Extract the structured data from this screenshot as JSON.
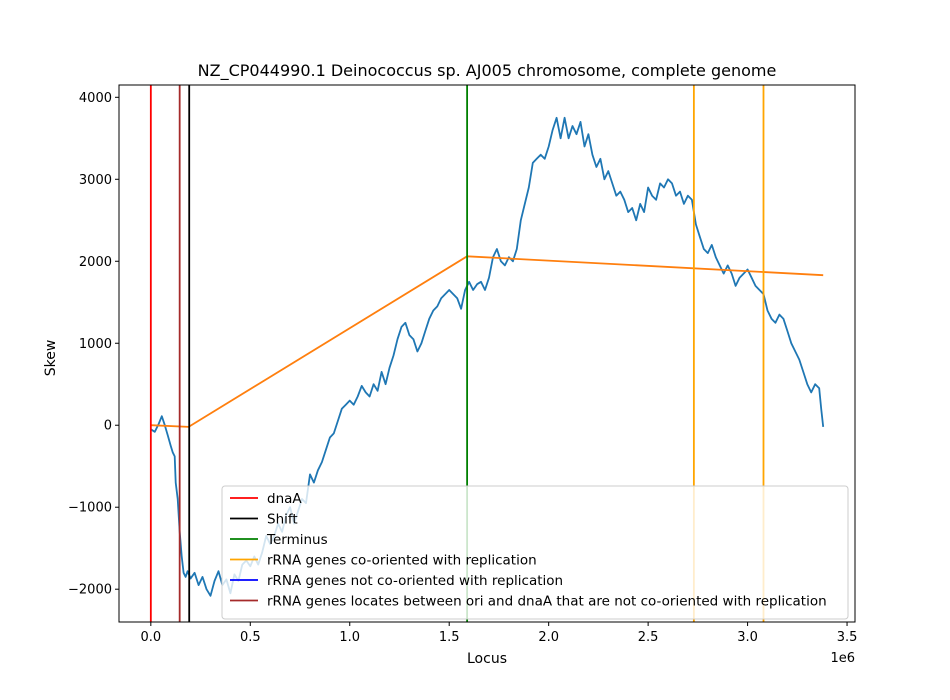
{
  "chart_data": {
    "type": "line",
    "title": "NZ_CP044990.1 Deinococcus sp. AJ005 chromosome, complete genome",
    "xlabel": "Locus",
    "ylabel": "Skew",
    "x_offset_label": "1e6",
    "xlim": [
      -160000,
      3540000
    ],
    "ylim": [
      -2400,
      4150
    ],
    "x_ticks": [
      0,
      500000,
      1000000,
      1500000,
      2000000,
      2500000,
      3000000,
      3500000
    ],
    "x_tick_labels": [
      "0.0",
      "0.5",
      "1.0",
      "1.5",
      "2.0",
      "2.5",
      "3.0",
      "3.5"
    ],
    "y_ticks": [
      -2000,
      -1000,
      0,
      1000,
      2000,
      3000,
      4000
    ],
    "y_tick_labels": [
      "−2000",
      "−1000",
      "0",
      "1000",
      "2000",
      "3000",
      "4000"
    ],
    "grid": false,
    "legend_position": "lower-right",
    "series": [
      {
        "name": "",
        "kind": "skew",
        "color": "#1f77b4",
        "points": [
          [
            0,
            -50
          ],
          [
            20000,
            -80
          ],
          [
            40000,
            20
          ],
          [
            55000,
            110
          ],
          [
            70000,
            0
          ],
          [
            85000,
            -120
          ],
          [
            100000,
            -250
          ],
          [
            110000,
            -330
          ],
          [
            120000,
            -380
          ],
          [
            125000,
            -700
          ],
          [
            135000,
            -900
          ],
          [
            145000,
            -1300
          ],
          [
            155000,
            -1600
          ],
          [
            165000,
            -1800
          ],
          [
            175000,
            -1850
          ],
          [
            185000,
            -1780
          ],
          [
            200000,
            -1870
          ],
          [
            220000,
            -1800
          ],
          [
            240000,
            -1950
          ],
          [
            260000,
            -1850
          ],
          [
            280000,
            -2000
          ],
          [
            300000,
            -2080
          ],
          [
            320000,
            -1900
          ],
          [
            340000,
            -1780
          ],
          [
            360000,
            -1950
          ],
          [
            380000,
            -1880
          ],
          [
            400000,
            -2050
          ],
          [
            420000,
            -1820
          ],
          [
            440000,
            -1900
          ],
          [
            460000,
            -1700
          ],
          [
            480000,
            -1650
          ],
          [
            500000,
            -1720
          ],
          [
            520000,
            -1600
          ],
          [
            540000,
            -1700
          ],
          [
            560000,
            -1550
          ],
          [
            580000,
            -1350
          ],
          [
            600000,
            -1450
          ],
          [
            620000,
            -1350
          ],
          [
            640000,
            -1200
          ],
          [
            660000,
            -1300
          ],
          [
            680000,
            -1100
          ],
          [
            700000,
            -1000
          ],
          [
            720000,
            -1200
          ],
          [
            740000,
            -1050
          ],
          [
            760000,
            -900
          ],
          [
            780000,
            -950
          ],
          [
            800000,
            -600
          ],
          [
            820000,
            -700
          ],
          [
            840000,
            -550
          ],
          [
            860000,
            -450
          ],
          [
            880000,
            -300
          ],
          [
            900000,
            -150
          ],
          [
            920000,
            -100
          ],
          [
            940000,
            50
          ],
          [
            960000,
            200
          ],
          [
            980000,
            250
          ],
          [
            1000000,
            300
          ],
          [
            1020000,
            250
          ],
          [
            1040000,
            350
          ],
          [
            1060000,
            480
          ],
          [
            1080000,
            400
          ],
          [
            1100000,
            350
          ],
          [
            1120000,
            500
          ],
          [
            1140000,
            420
          ],
          [
            1160000,
            650
          ],
          [
            1180000,
            500
          ],
          [
            1200000,
            700
          ],
          [
            1220000,
            850
          ],
          [
            1240000,
            1050
          ],
          [
            1260000,
            1200
          ],
          [
            1280000,
            1250
          ],
          [
            1300000,
            1100
          ],
          [
            1320000,
            1050
          ],
          [
            1340000,
            900
          ],
          [
            1360000,
            1000
          ],
          [
            1380000,
            1150
          ],
          [
            1400000,
            1300
          ],
          [
            1420000,
            1400
          ],
          [
            1440000,
            1450
          ],
          [
            1460000,
            1550
          ],
          [
            1480000,
            1600
          ],
          [
            1500000,
            1650
          ],
          [
            1520000,
            1600
          ],
          [
            1540000,
            1550
          ],
          [
            1560000,
            1420
          ],
          [
            1580000,
            1650
          ],
          [
            1600000,
            1750
          ],
          [
            1620000,
            1650
          ],
          [
            1640000,
            1720
          ],
          [
            1660000,
            1750
          ],
          [
            1680000,
            1650
          ],
          [
            1700000,
            1800
          ],
          [
            1720000,
            2050
          ],
          [
            1740000,
            2150
          ],
          [
            1760000,
            2000
          ],
          [
            1780000,
            1950
          ],
          [
            1800000,
            2050
          ],
          [
            1820000,
            2000
          ],
          [
            1840000,
            2150
          ],
          [
            1860000,
            2500
          ],
          [
            1880000,
            2700
          ],
          [
            1900000,
            2900
          ],
          [
            1920000,
            3200
          ],
          [
            1940000,
            3250
          ],
          [
            1960000,
            3300
          ],
          [
            1980000,
            3250
          ],
          [
            2000000,
            3400
          ],
          [
            2020000,
            3600
          ],
          [
            2040000,
            3750
          ],
          [
            2060000,
            3500
          ],
          [
            2080000,
            3750
          ],
          [
            2100000,
            3500
          ],
          [
            2120000,
            3650
          ],
          [
            2140000,
            3550
          ],
          [
            2160000,
            3700
          ],
          [
            2180000,
            3400
          ],
          [
            2200000,
            3550
          ],
          [
            2220000,
            3300
          ],
          [
            2240000,
            3150
          ],
          [
            2260000,
            3250
          ],
          [
            2280000,
            3000
          ],
          [
            2300000,
            3100
          ],
          [
            2320000,
            2950
          ],
          [
            2340000,
            2800
          ],
          [
            2360000,
            2850
          ],
          [
            2380000,
            2750
          ],
          [
            2400000,
            2600
          ],
          [
            2420000,
            2650
          ],
          [
            2440000,
            2500
          ],
          [
            2460000,
            2700
          ],
          [
            2480000,
            2600
          ],
          [
            2500000,
            2900
          ],
          [
            2520000,
            2800
          ],
          [
            2540000,
            2750
          ],
          [
            2560000,
            2950
          ],
          [
            2580000,
            2900
          ],
          [
            2600000,
            3000
          ],
          [
            2620000,
            2950
          ],
          [
            2640000,
            2800
          ],
          [
            2660000,
            2850
          ],
          [
            2680000,
            2700
          ],
          [
            2700000,
            2800
          ],
          [
            2720000,
            2750
          ],
          [
            2740000,
            2450
          ],
          [
            2760000,
            2300
          ],
          [
            2780000,
            2150
          ],
          [
            2800000,
            2100
          ],
          [
            2820000,
            2200
          ],
          [
            2840000,
            2050
          ],
          [
            2860000,
            1950
          ],
          [
            2880000,
            1850
          ],
          [
            2900000,
            1950
          ],
          [
            2920000,
            1850
          ],
          [
            2940000,
            1700
          ],
          [
            2960000,
            1800
          ],
          [
            2980000,
            1850
          ],
          [
            3000000,
            1900
          ],
          [
            3020000,
            1800
          ],
          [
            3040000,
            1700
          ],
          [
            3060000,
            1650
          ],
          [
            3080000,
            1600
          ],
          [
            3100000,
            1400
          ],
          [
            3120000,
            1300
          ],
          [
            3140000,
            1250
          ],
          [
            3160000,
            1350
          ],
          [
            3180000,
            1300
          ],
          [
            3200000,
            1150
          ],
          [
            3220000,
            1000
          ],
          [
            3240000,
            900
          ],
          [
            3260000,
            800
          ],
          [
            3280000,
            650
          ],
          [
            3300000,
            500
          ],
          [
            3320000,
            400
          ],
          [
            3340000,
            500
          ],
          [
            3360000,
            450
          ],
          [
            3370000,
            200
          ],
          [
            3380000,
            -20
          ]
        ]
      },
      {
        "name": "",
        "kind": "piecewise",
        "color": "#ff7f0e",
        "points": [
          [
            0,
            0
          ],
          [
            190000,
            -20
          ],
          [
            1590000,
            2060
          ],
          [
            3380000,
            1830
          ]
        ]
      }
    ],
    "vlines": [
      {
        "label": "dnaA",
        "x": 0,
        "color": "#ff0000",
        "show_in_legend": true
      },
      {
        "label": "rRNA genes locates between ori and dnaA that are not co-oriented with replication",
        "x": 145000,
        "color": "#a52a2a",
        "show_in_legend": true
      },
      {
        "label": "Shift",
        "x": 193000,
        "color": "#000000",
        "show_in_legend": true
      },
      {
        "label": "Terminus",
        "x": 1590000,
        "color": "#008000",
        "show_in_legend": true
      },
      {
        "label": "rRNA genes co-oriented with replication",
        "x": 2730000,
        "color": "#ffa500",
        "show_in_legend": true
      },
      {
        "label": "rRNA genes co-oriented with replication",
        "x": 3080000,
        "color": "#ffa500",
        "show_in_legend": false
      }
    ],
    "legend": [
      {
        "label": "dnaA",
        "color": "#ff0000"
      },
      {
        "label": "Shift",
        "color": "#000000"
      },
      {
        "label": "Terminus",
        "color": "#008000"
      },
      {
        "label": "rRNA genes co-oriented with replication",
        "color": "#ffa500"
      },
      {
        "label": "rRNA genes not co-oriented with replication",
        "color": "#0000ff"
      },
      {
        "label": "rRNA genes locates between ori and dnaA that are not co-oriented with replication",
        "color": "#a52a2a"
      }
    ]
  }
}
